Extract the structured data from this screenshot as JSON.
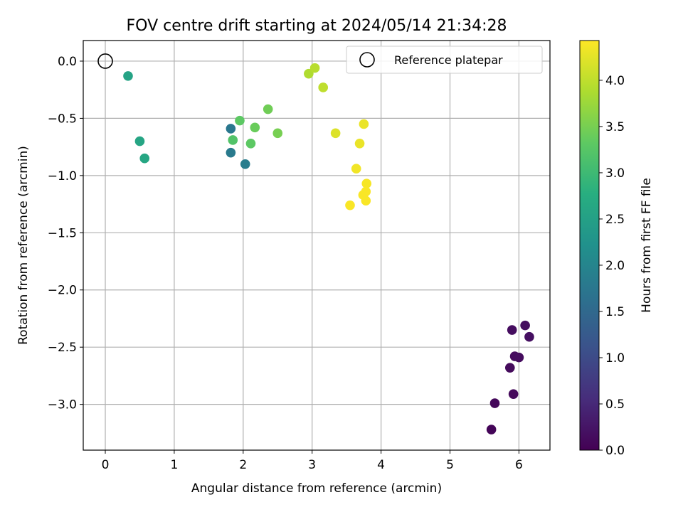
{
  "chart_data": {
    "type": "scatter",
    "title": "FOV centre drift starting at 2024/05/14 21:34:28",
    "xlabel": "Angular distance from reference (arcmin)",
    "ylabel": "Rotation from reference (arcmin)",
    "xlim": [
      -0.32,
      6.45
    ],
    "ylim": [
      -3.4,
      0.18
    ],
    "xticks": [
      0,
      1,
      2,
      3,
      4,
      5,
      6
    ],
    "xtick_labels": [
      "0",
      "1",
      "2",
      "3",
      "4",
      "5",
      "6"
    ],
    "yticks": [
      0.0,
      -0.5,
      -1.0,
      -1.5,
      -2.0,
      -2.5,
      -3.0
    ],
    "ytick_labels": [
      "0.0",
      "−0.5",
      "−1.0",
      "−1.5",
      "−2.0",
      "−2.5",
      "−3.0"
    ],
    "grid": true,
    "legend": {
      "placement": "top-right",
      "entries": [
        "Reference platepar"
      ]
    },
    "reference_point": {
      "label": "Reference platepar",
      "x": 0.0,
      "y": 0.0
    },
    "colorbar": {
      "label": "Hours from first FF file",
      "range": [
        0.0,
        4.43
      ],
      "colormap": "viridis",
      "ticks": [
        0.0,
        0.5,
        1.0,
        1.5,
        2.0,
        2.5,
        3.0,
        3.5,
        4.0
      ],
      "tick_labels": [
        "0.0",
        "0.5",
        "1.0",
        "1.5",
        "2.0",
        "2.5",
        "3.0",
        "3.5",
        "4.0"
      ]
    },
    "points": [
      {
        "x": 5.6,
        "y": -3.22,
        "hours": 0.05
      },
      {
        "x": 5.65,
        "y": -2.99,
        "hours": 0.08
      },
      {
        "x": 5.92,
        "y": -2.91,
        "hours": 0.1
      },
      {
        "x": 5.87,
        "y": -2.68,
        "hours": 0.12
      },
      {
        "x": 5.94,
        "y": -2.58,
        "hours": 0.13
      },
      {
        "x": 6.0,
        "y": -2.59,
        "hours": 0.14
      },
      {
        "x": 5.9,
        "y": -2.35,
        "hours": 0.15
      },
      {
        "x": 6.09,
        "y": -2.31,
        "hours": 0.16
      },
      {
        "x": 6.15,
        "y": -2.41,
        "hours": 0.18
      },
      {
        "x": 1.82,
        "y": -0.59,
        "hours": 1.75
      },
      {
        "x": 1.82,
        "y": -0.8,
        "hours": 1.8
      },
      {
        "x": 2.03,
        "y": -0.9,
        "hours": 1.85
      },
      {
        "x": 0.33,
        "y": -0.13,
        "hours": 2.55
      },
      {
        "x": 0.5,
        "y": -0.7,
        "hours": 2.6
      },
      {
        "x": 0.57,
        "y": -0.85,
        "hours": 2.62
      },
      {
        "x": 1.85,
        "y": -0.69,
        "hours": 3.2
      },
      {
        "x": 1.95,
        "y": -0.52,
        "hours": 3.3
      },
      {
        "x": 2.11,
        "y": -0.72,
        "hours": 3.3
      },
      {
        "x": 2.17,
        "y": -0.58,
        "hours": 3.4
      },
      {
        "x": 2.36,
        "y": -0.42,
        "hours": 3.45
      },
      {
        "x": 2.5,
        "y": -0.63,
        "hours": 3.5
      },
      {
        "x": 2.95,
        "y": -0.11,
        "hours": 3.9
      },
      {
        "x": 3.04,
        "y": -0.06,
        "hours": 3.95
      },
      {
        "x": 3.16,
        "y": -0.23,
        "hours": 4.0
      },
      {
        "x": 3.34,
        "y": -0.63,
        "hours": 4.2
      },
      {
        "x": 3.75,
        "y": -0.55,
        "hours": 4.3
      },
      {
        "x": 3.69,
        "y": -0.72,
        "hours": 4.3
      },
      {
        "x": 3.64,
        "y": -0.94,
        "hours": 4.35
      },
      {
        "x": 3.79,
        "y": -1.07,
        "hours": 4.38
      },
      {
        "x": 3.78,
        "y": -1.14,
        "hours": 4.4
      },
      {
        "x": 3.74,
        "y": -1.17,
        "hours": 4.4
      },
      {
        "x": 3.78,
        "y": -1.22,
        "hours": 4.4
      },
      {
        "x": 3.55,
        "y": -1.26,
        "hours": 4.4
      }
    ]
  }
}
